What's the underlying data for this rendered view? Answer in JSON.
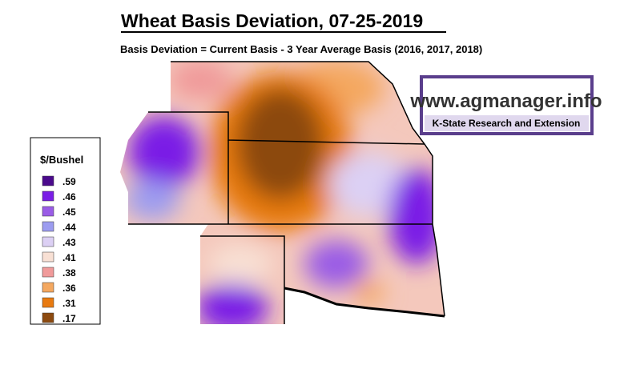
{
  "header": {
    "title": "Wheat Basis Deviation, 07-25-2019",
    "subtitle": "Basis Deviation = Current Basis - 3 Year Average Basis (2016, 2017, 2018)"
  },
  "legend": {
    "title": "$/Bushel",
    "items": [
      {
        "label": ".59",
        "color": "#4b0a8c"
      },
      {
        "label": ".46",
        "color": "#7a1ee6"
      },
      {
        "label": ".45",
        "color": "#9a5ce6"
      },
      {
        "label": ".44",
        "color": "#9c9cf0"
      },
      {
        "label": ".43",
        "color": "#dcd0f4"
      },
      {
        "label": ".41",
        "color": "#f8e0d4"
      },
      {
        "label": ".38",
        "color": "#f09a9a"
      },
      {
        "label": ".36",
        "color": "#f4a860"
      },
      {
        "label": ".31",
        "color": "#e87a10"
      },
      {
        "label": ".17",
        "color": "#8c4a10"
      }
    ]
  },
  "logo": {
    "url": "www.agmanager.info",
    "org": "K-State Research and Extension"
  }
}
